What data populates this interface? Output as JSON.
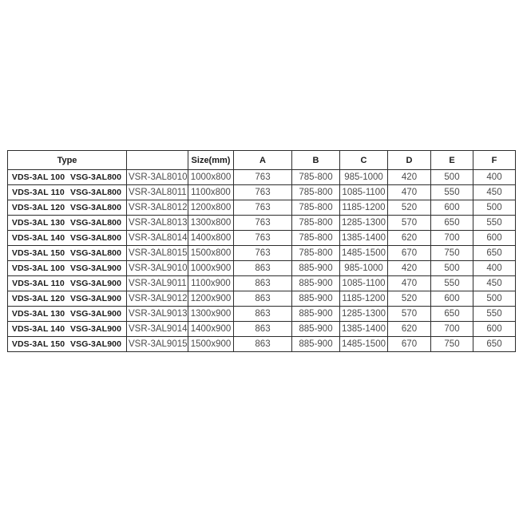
{
  "page": {
    "background_color": "#ffffff",
    "border_color": "#2d2d2d",
    "header_text_color": "#1b1b1b",
    "data_text_color": "#4b4b4b"
  },
  "table": {
    "header": {
      "type_label": "Type",
      "model_label": "",
      "size_label": "Size(mm)",
      "dim_labels": [
        "A",
        "B",
        "C",
        "D",
        "E",
        "F"
      ]
    },
    "rows": [
      {
        "vds": "VDS-3AL 100",
        "vsg": "VSG-3AL800",
        "model": "VSR-3AL8010",
        "size": "1000x800",
        "A": "763",
        "B": "785-800",
        "C": "985-1000",
        "D": "420",
        "E": "500",
        "F": "400"
      },
      {
        "vds": "VDS-3AL 110",
        "vsg": "VSG-3AL800",
        "model": "VSR-3AL8011",
        "size": "1100x800",
        "A": "763",
        "B": "785-800",
        "C": "1085-1100",
        "D": "470",
        "E": "550",
        "F": "450"
      },
      {
        "vds": "VDS-3AL 120",
        "vsg": "VSG-3AL800",
        "model": "VSR-3AL8012",
        "size": "1200x800",
        "A": "763",
        "B": "785-800",
        "C": "1185-1200",
        "D": "520",
        "E": "600",
        "F": "500"
      },
      {
        "vds": "VDS-3AL 130",
        "vsg": "VSG-3AL800",
        "model": "VSR-3AL8013",
        "size": "1300x800",
        "A": "763",
        "B": "785-800",
        "C": "1285-1300",
        "D": "570",
        "E": "650",
        "F": "550"
      },
      {
        "vds": "VDS-3AL 140",
        "vsg": "VSG-3AL800",
        "model": "VSR-3AL8014",
        "size": "1400x800",
        "A": "763",
        "B": "785-800",
        "C": "1385-1400",
        "D": "620",
        "E": "700",
        "F": "600"
      },
      {
        "vds": "VDS-3AL 150",
        "vsg": "VSG-3AL800",
        "model": "VSR-3AL8015",
        "size": "1500x800",
        "A": "763",
        "B": "785-800",
        "C": "1485-1500",
        "D": "670",
        "E": "750",
        "F": "650"
      },
      {
        "vds": "VDS-3AL 100",
        "vsg": "VSG-3AL900",
        "model": "VSR-3AL9010",
        "size": "1000x900",
        "A": "863",
        "B": "885-900",
        "C": "985-1000",
        "D": "420",
        "E": "500",
        "F": "400"
      },
      {
        "vds": "VDS-3AL 110",
        "vsg": "VSG-3AL900",
        "model": "VSR-3AL9011",
        "size": "1100x900",
        "A": "863",
        "B": "885-900",
        "C": "1085-1100",
        "D": "470",
        "E": "550",
        "F": "450"
      },
      {
        "vds": "VDS-3AL 120",
        "vsg": "VSG-3AL900",
        "model": "VSR-3AL9012",
        "size": "1200x900",
        "A": "863",
        "B": "885-900",
        "C": "1185-1200",
        "D": "520",
        "E": "600",
        "F": "500"
      },
      {
        "vds": "VDS-3AL 130",
        "vsg": "VSG-3AL900",
        "model": "VSR-3AL9013",
        "size": "1300x900",
        "A": "863",
        "B": "885-900",
        "C": "1285-1300",
        "D": "570",
        "E": "650",
        "F": "550"
      },
      {
        "vds": "VDS-3AL 140",
        "vsg": "VSG-3AL900",
        "model": "VSR-3AL9014",
        "size": "1400x900",
        "A": "863",
        "B": "885-900",
        "C": "1385-1400",
        "D": "620",
        "E": "700",
        "F": "600"
      },
      {
        "vds": "VDS-3AL 150",
        "vsg": "VSG-3AL900",
        "model": "VSR-3AL9015",
        "size": "1500x900",
        "A": "863",
        "B": "885-900",
        "C": "1485-1500",
        "D": "670",
        "E": "750",
        "F": "650"
      }
    ]
  }
}
